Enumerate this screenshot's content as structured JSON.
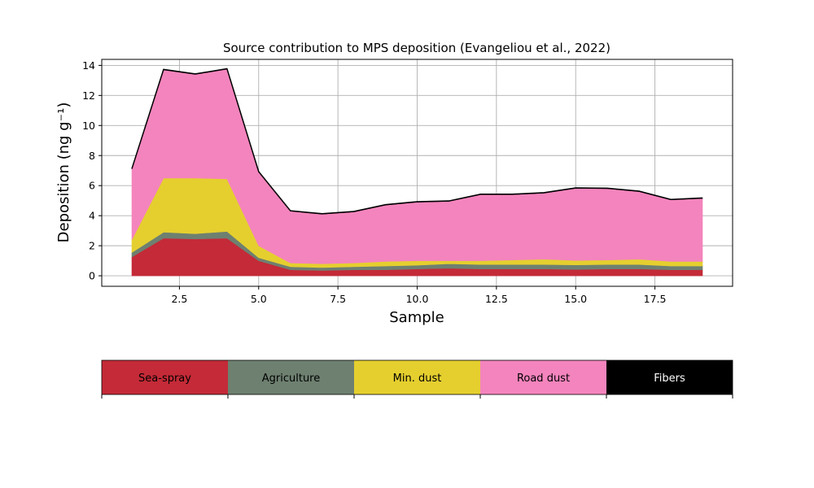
{
  "chart_data": {
    "type": "area",
    "stacked": true,
    "title": "Source contribution to MPS deposition (Evangeliou et al., 2022)",
    "xlabel": "Sample",
    "ylabel": "Deposition (ng g⁻¹)",
    "xlim": [
      0.05,
      19.95
    ],
    "ylim": [
      -0.7,
      14.4
    ],
    "xticks": [
      2.5,
      5.0,
      7.5,
      10.0,
      12.5,
      15.0,
      17.5
    ],
    "xtick_labels": [
      "2.5",
      "5.0",
      "7.5",
      "10.0",
      "12.5",
      "15.0",
      "17.5"
    ],
    "yticks": [
      0,
      2,
      4,
      6,
      8,
      10,
      12,
      14
    ],
    "ytick_labels": [
      "0",
      "2",
      "4",
      "6",
      "8",
      "10",
      "12",
      "14"
    ],
    "grid": true,
    "x": [
      1,
      2,
      3,
      4,
      5,
      6,
      7,
      8,
      9,
      10,
      11,
      12,
      13,
      14,
      15,
      16,
      17,
      18,
      19
    ],
    "series": [
      {
        "name": "Sea-spray",
        "color": "#c42a37",
        "values": [
          1.25,
          2.5,
          2.45,
          2.5,
          1.0,
          0.4,
          0.35,
          0.4,
          0.4,
          0.45,
          0.5,
          0.45,
          0.45,
          0.45,
          0.42,
          0.45,
          0.45,
          0.4,
          0.4
        ]
      },
      {
        "name": "Agriculture",
        "color": "#6e8070",
        "values": [
          0.3,
          0.4,
          0.35,
          0.45,
          0.2,
          0.2,
          0.2,
          0.2,
          0.25,
          0.25,
          0.3,
          0.3,
          0.3,
          0.3,
          0.3,
          0.3,
          0.3,
          0.25,
          0.25
        ]
      },
      {
        "name": "Min. dust",
        "color": "#e5cf2f",
        "values": [
          0.85,
          3.6,
          3.7,
          3.5,
          0.8,
          0.25,
          0.25,
          0.25,
          0.3,
          0.3,
          0.2,
          0.25,
          0.3,
          0.35,
          0.3,
          0.3,
          0.35,
          0.3,
          0.3
        ]
      },
      {
        "name": "Road dust",
        "color": "#f484bd",
        "values": [
          4.7,
          7.2,
          6.9,
          7.3,
          4.9,
          3.45,
          3.3,
          3.4,
          3.75,
          3.9,
          3.95,
          4.4,
          4.35,
          4.4,
          4.8,
          4.75,
          4.5,
          4.1,
          4.2
        ]
      },
      {
        "name": "Fibers",
        "color": "#000000",
        "values": [
          0.03,
          0.03,
          0.03,
          0.03,
          0.03,
          0.03,
          0.03,
          0.03,
          0.03,
          0.03,
          0.03,
          0.03,
          0.03,
          0.03,
          0.03,
          0.03,
          0.03,
          0.03,
          0.03
        ]
      }
    ],
    "legend": [
      {
        "label": "Sea-spray",
        "color": "#c42a37",
        "text_color": "#000000"
      },
      {
        "label": "Agriculture",
        "color": "#6e8070",
        "text_color": "#000000"
      },
      {
        "label": "Min. dust",
        "color": "#e5cf2f",
        "text_color": "#000000"
      },
      {
        "label": "Road dust",
        "color": "#f484bd",
        "text_color": "#000000"
      },
      {
        "label": "Fibers",
        "color": "#000000",
        "text_color": "#ffffff"
      }
    ],
    "legend_placement": "below"
  }
}
